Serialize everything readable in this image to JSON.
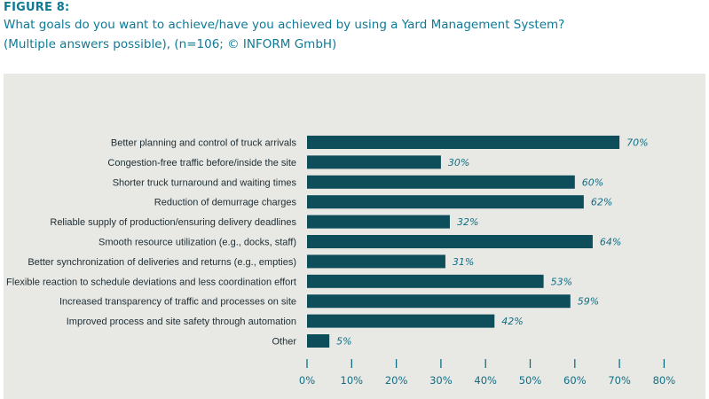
{
  "figure": {
    "label": "FIGURE 8:",
    "title": "What goals do you want to achieve/have you achieved by using a Yard Management System?",
    "subtitle": "(Multiple answers possible), (n=106; © INFORM GmbH)"
  },
  "colors": {
    "heading": "#0d7a96",
    "bar": "#0e4d5a",
    "panel": "#e8e8e4",
    "value_label": "#0f6f86"
  },
  "chart_data": {
    "type": "bar",
    "orientation": "horizontal",
    "categories": [
      "Better planning and control of truck arrivals",
      "Congestion-free traffic before/inside the site",
      "Shorter truck turnaround and waiting times",
      "Reduction of demurrage charges",
      "Reliable supply of production/ensuring delivery deadlines",
      "Smooth resource utilization (e.g., docks, staff)",
      "Better synchronization of deliveries and returns (e.g., empties)",
      "Flexible reaction to schedule deviations and less coordination effort",
      "Increased transparency of traffic and processes on site",
      "Improved process and site safety through automation",
      "Other"
    ],
    "values": [
      70,
      30,
      60,
      62,
      32,
      64,
      31,
      53,
      59,
      42,
      5
    ],
    "value_labels": [
      "70%",
      "30%",
      "60%",
      "62%",
      "32%",
      "64%",
      "31%",
      "53%",
      "59%",
      "42%",
      "5%"
    ],
    "xlim": [
      0,
      80
    ],
    "xticks": [
      0,
      10,
      20,
      30,
      40,
      50,
      60,
      70,
      80
    ],
    "xtick_labels": [
      "0%",
      "10%",
      "20%",
      "30%",
      "40%",
      "50%",
      "60%",
      "70%",
      "80%"
    ],
    "grid": false,
    "legend": "none"
  }
}
